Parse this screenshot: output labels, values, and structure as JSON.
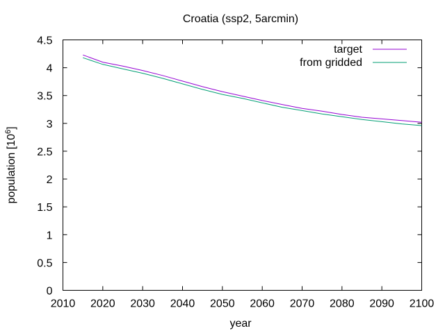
{
  "chart_data": {
    "type": "line",
    "title": "Croatia (ssp2, 5arcmin)",
    "xlabel": "year",
    "ylabel_main": "population [10",
    "ylabel_sup": "6",
    "ylabel_close": "]",
    "xlim": [
      2010,
      2100
    ],
    "ylim": [
      0,
      4.5
    ],
    "xticks": [
      2010,
      2020,
      2030,
      2040,
      2050,
      2060,
      2070,
      2080,
      2090,
      2100
    ],
    "yticks": [
      0,
      0.5,
      1,
      1.5,
      2,
      2.5,
      3,
      3.5,
      4,
      4.5
    ],
    "ytick_labels": [
      "0",
      "0.5",
      "1",
      "1.5",
      "2",
      "2.5",
      "3",
      "3.5",
      "4",
      "4.5"
    ],
    "grid": false,
    "legend_position": "top-right",
    "x": [
      2015,
      2020,
      2025,
      2030,
      2035,
      2040,
      2045,
      2050,
      2055,
      2060,
      2065,
      2070,
      2075,
      2080,
      2085,
      2090,
      2095,
      2100
    ],
    "series": [
      {
        "name": "target",
        "color": "#9400d3",
        "values": [
          4.23,
          4.1,
          4.03,
          3.95,
          3.86,
          3.76,
          3.66,
          3.57,
          3.49,
          3.41,
          3.34,
          3.27,
          3.22,
          3.16,
          3.11,
          3.08,
          3.05,
          3.02
        ]
      },
      {
        "name": "from gridded",
        "color": "#009e73",
        "values": [
          4.18,
          4.06,
          3.98,
          3.9,
          3.81,
          3.71,
          3.61,
          3.52,
          3.45,
          3.37,
          3.29,
          3.23,
          3.17,
          3.12,
          3.07,
          3.03,
          2.99,
          2.96
        ]
      }
    ]
  }
}
